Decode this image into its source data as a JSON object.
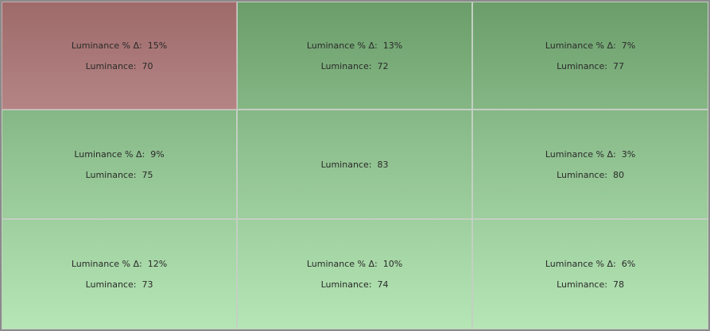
{
  "cells": [
    {
      "delta": "Luminance % Δ:  15%",
      "luminance": "Luminance:  70"
    },
    {
      "delta": "Luminance % Δ:  13%",
      "luminance": "Luminance:  72"
    },
    {
      "delta": "Luminance % Δ:  7%",
      "luminance": "Luminance:  77"
    },
    {
      "delta": "Luminance % Δ:  9%",
      "luminance": "Luminance:  75"
    },
    {
      "luminance": "Luminance:  83"
    },
    {
      "delta": "Luminance % Δ:  3%",
      "luminance": "Luminance:  80"
    },
    {
      "delta": "Luminance % Δ:  12%",
      "luminance": "Luminance:  73"
    },
    {
      "delta": "Luminance % Δ:  10%",
      "luminance": "Luminance:  74"
    },
    {
      "delta": "Luminance % Δ:  6%",
      "luminance": "Luminance:  78"
    }
  ]
}
